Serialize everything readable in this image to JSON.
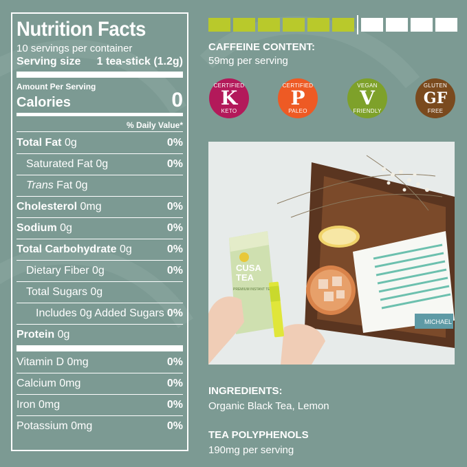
{
  "nutrition": {
    "title": "Nutrition Facts",
    "servings": "10 servings per container",
    "serving_size_label": "Serving size",
    "serving_size_value": "1 tea-stick (1.2g)",
    "amount_per_serving": "Amount Per Serving",
    "calories_label": "Calories",
    "calories_value": "0",
    "daily_value_header": "% Daily Value*",
    "rows": [
      {
        "name": "Total Fat",
        "amount": "0g",
        "dv": "0%"
      },
      {
        "name": "Saturated Fat",
        "amount": "0g",
        "dv": "0%"
      },
      {
        "name": "Trans",
        "suffix": "Fat",
        "amount": "0g",
        "dv": ""
      },
      {
        "name": "Cholesterol",
        "amount": "0mg",
        "dv": "0%"
      },
      {
        "name": "Sodium",
        "amount": "0g",
        "dv": "0%"
      },
      {
        "name": "Total Carbohydrate",
        "amount": "0g",
        "dv": "0%"
      },
      {
        "name": "Dietary Fiber",
        "amount": "0g",
        "dv": "0%"
      },
      {
        "name": "Total Sugars",
        "amount": "0g",
        "dv": ""
      },
      {
        "name": "Includes 0g Added Sugars",
        "amount": "",
        "dv": "0%"
      },
      {
        "name": "Protein",
        "amount": "0g",
        "dv": ""
      }
    ],
    "vitamins": [
      {
        "name": "Vitamin D 0mg",
        "dv": "0%"
      },
      {
        "name": "Calcium 0mg",
        "dv": "0%"
      },
      {
        "name": "Iron 0mg",
        "dv": "0%"
      },
      {
        "name": "Potassium 0mg",
        "dv": "0%"
      }
    ]
  },
  "caffeine": {
    "title": "CAFFEINE CONTENT:",
    "value": "59mg per serving",
    "filled_segments": 6,
    "total_segments": 10,
    "filled_color": "#b9c92b"
  },
  "badges": [
    {
      "top": "CERTIFIED",
      "mark": "K",
      "bottom": "KETO",
      "color": "#b3195a"
    },
    {
      "top": "CERTIFIED",
      "mark": "P",
      "bottom": "PALEO",
      "color": "#ee5a24"
    },
    {
      "top": "VEGAN",
      "mark": "V",
      "bottom": "FRIENDLY",
      "color": "#7ea12a"
    },
    {
      "top": "GLUTEN",
      "mark": "GF",
      "bottom": "FREE",
      "color": "#7a4a1e"
    }
  ],
  "photo": {
    "box_brand_line1": "CUSA",
    "box_brand_line2": "TEA",
    "box_subtitle": "PREMIUM INSTANT TEA",
    "book_author": "MICHAEL"
  },
  "ingredients": {
    "title": "INGREDIENTS:",
    "value": "Organic Black Tea, Lemon"
  },
  "polyphenols": {
    "title": "TEA POLYPHENOLS",
    "value": "190mg per serving"
  },
  "colors": {
    "background": "#7c9a93",
    "text": "#ffffff"
  }
}
